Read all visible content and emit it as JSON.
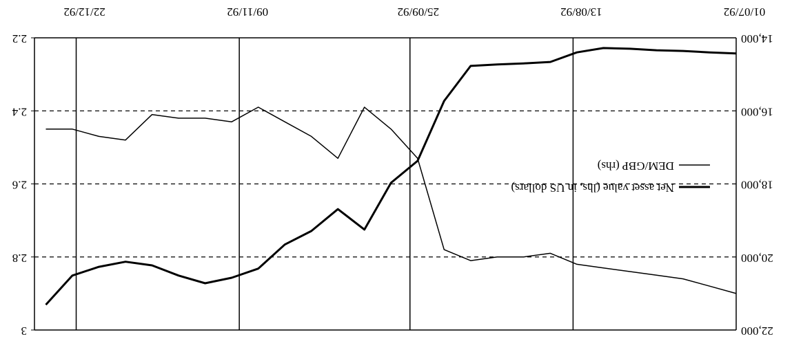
{
  "chart_data": {
    "type": "line",
    "rotated": 180,
    "x": [
      "1992-07-01",
      "1992-07-08",
      "1992-07-15",
      "1992-07-22",
      "1992-07-29",
      "1992-08-05",
      "1992-08-12",
      "1992-08-19",
      "1992-08-26",
      "1992-09-02",
      "1992-09-09",
      "1992-09-16",
      "1992-09-23",
      "1992-09-30",
      "1992-10-07",
      "1992-10-14",
      "1992-10-21",
      "1992-10-28",
      "1992-11-04",
      "1992-11-11",
      "1992-11-18",
      "1992-11-25",
      "1992-12-02",
      "1992-12-09",
      "1992-12-16",
      "1992-12-23",
      "1992-12-30"
    ],
    "series": [
      {
        "name": "Net asset value (lhs, in US dollars)",
        "color": "#000000",
        "width": 3,
        "values": [
          14430,
          14400,
          14360,
          14340,
          14300,
          14280,
          14400,
          14660,
          14700,
          14730,
          14770,
          15730,
          17370,
          17970,
          19250,
          18690,
          19290,
          19660,
          20320,
          20570,
          20720,
          20510,
          20230,
          20130,
          20270,
          20510,
          21310
        ]
      },
      {
        "name": "DEM/GBP (rhs)",
        "color": "#000000",
        "width": 1.5,
        "axis": "y2",
        "values": [
          2.9,
          2.88,
          2.86,
          2.85,
          2.84,
          2.83,
          2.82,
          2.79,
          2.8,
          2.8,
          2.81,
          2.78,
          2.53,
          2.45,
          2.39,
          2.53,
          2.47,
          2.43,
          2.39,
          2.43,
          2.42,
          2.42,
          2.41,
          2.48,
          2.47,
          2.45,
          2.45
        ]
      }
    ],
    "xlim": [
      "1992-07-01",
      "1993-01-02"
    ],
    "xticks": [
      {
        "value": "1992-07-01",
        "label": "01/07/92"
      },
      {
        "value": "1992-08-13",
        "label": "13/08/92"
      },
      {
        "value": "1992-09-25",
        "label": "25/09/92"
      },
      {
        "value": "1992-11-09",
        "label": "09/11/92"
      },
      {
        "value": "1992-12-22",
        "label": "22/12/92"
      }
    ],
    "ylim": [
      14000,
      22000
    ],
    "yticks": [
      {
        "value": 14000,
        "label": "14,000"
      },
      {
        "value": 16000,
        "label": "16,000"
      },
      {
        "value": 18000,
        "label": "18,000"
      },
      {
        "value": 20000,
        "label": "20,000"
      },
      {
        "value": 22000,
        "label": "22,000"
      }
    ],
    "y2lim": [
      2.2,
      3
    ],
    "y2ticks": [
      2.2,
      2.4,
      2.6,
      2.8,
      3
    ],
    "grid": true,
    "legend": "upper left"
  }
}
